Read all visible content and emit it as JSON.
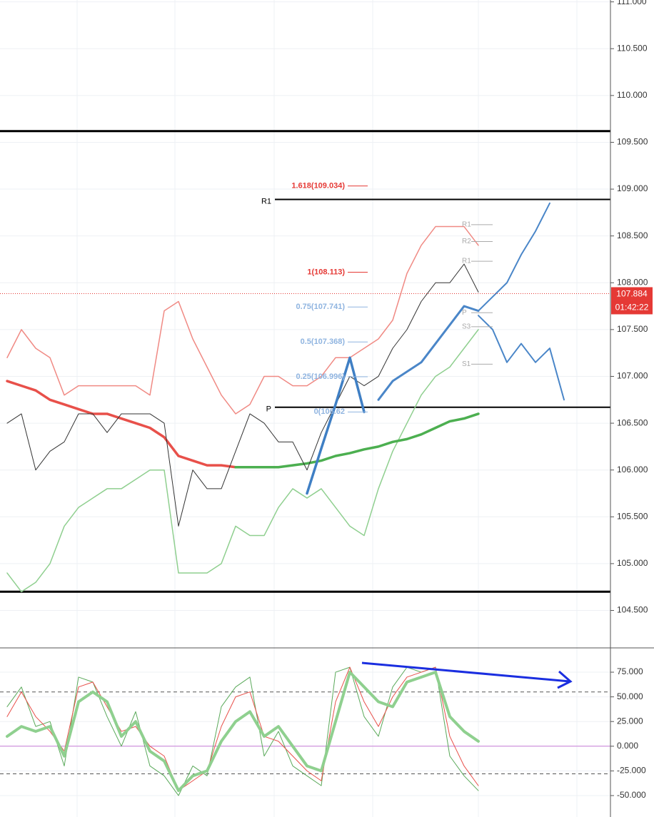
{
  "chart_data": [
    {
      "type": "line",
      "categories": [
        null,
        null,
        null,
        null,
        null,
        null,
        null,
        null,
        null,
        null,
        null,
        null,
        null,
        null,
        null,
        null,
        null,
        null,
        null,
        null,
        null,
        null,
        null,
        null,
        null,
        null,
        null,
        null,
        null,
        null,
        null,
        null,
        null,
        null,
        null,
        null,
        null,
        null,
        null,
        null
      ],
      "ylim": [
        104.1,
        111.02
      ],
      "yticks": [
        {
          "value": 104.5,
          "label": "104.500"
        },
        {
          "value": 105,
          "label": "105.000"
        },
        {
          "value": 105.5,
          "label": "105.500"
        },
        {
          "value": 106,
          "label": "106.000"
        },
        {
          "value": 106.5,
          "label": "106.500"
        },
        {
          "value": 107,
          "label": "107.000"
        },
        {
          "value": 107.5,
          "label": "107.500"
        },
        {
          "value": 108,
          "label": "108.000"
        },
        {
          "value": 108.5,
          "label": "108.500"
        },
        {
          "value": 109,
          "label": "109.000"
        },
        {
          "value": 109.5,
          "label": "109.500"
        },
        {
          "value": 110,
          "label": "110.000"
        },
        {
          "value": 110.5,
          "label": "110.500"
        },
        {
          "value": 111,
          "label": "111.000"
        }
      ],
      "grid": true,
      "series": [
        {
          "color": "#f08a84",
          "values": [
            107.2,
            107.5,
            107.3,
            107.2,
            106.8,
            106.9,
            106.9,
            106.9,
            106.9,
            106.9,
            106.8,
            107.7,
            107.8,
            107.4,
            107.1,
            106.8,
            106.6,
            106.7,
            107.0,
            107.0,
            106.9,
            106.9,
            107.0,
            107.2,
            107.2,
            107.3,
            107.4,
            107.6,
            108.1,
            108.4,
            108.6,
            108.6,
            108.6,
            108.4,
            null,
            null,
            null,
            null,
            null,
            null
          ]
        },
        {
          "color": "#8fcf8f",
          "values": [
            104.9,
            104.7,
            104.8,
            105.0,
            105.4,
            105.6,
            105.7,
            105.8,
            105.8,
            105.9,
            106.0,
            106.0,
            104.9,
            104.9,
            104.9,
            105.0,
            105.4,
            105.3,
            105.3,
            105.6,
            105.8,
            105.7,
            105.8,
            105.6,
            105.4,
            105.3,
            105.8,
            106.2,
            106.5,
            106.8,
            107.0,
            107.1,
            107.3,
            107.5,
            null,
            null,
            null,
            null,
            null,
            null
          ]
        },
        {
          "color": "#e8504a",
          "values": [
            106.95,
            106.9,
            106.85,
            106.75,
            106.7,
            106.65,
            106.6,
            106.6,
            106.55,
            106.5,
            106.45,
            106.35,
            106.15,
            106.1,
            106.05,
            106.05,
            106.03,
            null,
            null,
            null,
            null,
            null,
            null,
            null,
            null,
            null,
            null,
            null,
            null,
            null,
            null,
            null,
            null,
            null,
            null,
            null,
            null,
            null,
            null,
            null
          ]
        },
        {
          "color": "#4caf50",
          "values": [
            null,
            null,
            null,
            null,
            null,
            null,
            null,
            null,
            null,
            null,
            null,
            null,
            null,
            null,
            null,
            null,
            106.03,
            106.03,
            106.03,
            106.03,
            106.05,
            106.07,
            106.1,
            106.15,
            106.18,
            106.22,
            106.25,
            106.3,
            106.33,
            106.38,
            106.45,
            106.52,
            106.55,
            106.6,
            null,
            null,
            null,
            null,
            null,
            null
          ]
        },
        {
          "color": "#333333",
          "values": [
            106.5,
            106.6,
            106.0,
            106.2,
            106.3,
            106.6,
            106.6,
            106.4,
            106.6,
            106.6,
            106.6,
            106.5,
            105.4,
            106.0,
            105.8,
            105.8,
            106.2,
            106.6,
            106.5,
            106.3,
            106.3,
            106.0,
            106.4,
            106.7,
            107.0,
            106.9,
            107.0,
            107.3,
            107.5,
            107.8,
            108.0,
            108.0,
            108.2,
            107.9,
            null,
            null,
            null,
            null,
            null,
            null
          ]
        },
        {
          "color": "#4a86c8",
          "values": [
            null,
            null,
            null,
            null,
            null,
            null,
            null,
            null,
            null,
            null,
            null,
            null,
            null,
            null,
            null,
            null,
            null,
            null,
            null,
            null,
            null,
            null,
            null,
            null,
            null,
            null,
            106.75,
            106.95,
            107.05,
            107.15,
            107.35,
            107.55,
            107.75,
            107.7,
            null,
            null,
            null,
            null,
            null,
            null
          ]
        },
        {
          "color": "#4a86c8",
          "values": [
            null,
            null,
            null,
            null,
            null,
            null,
            null,
            null,
            null,
            null,
            null,
            null,
            null,
            null,
            null,
            null,
            null,
            null,
            null,
            null,
            null,
            null,
            null,
            null,
            null,
            null,
            null,
            null,
            null,
            null,
            null,
            null,
            null,
            107.7,
            107.85,
            108.0,
            108.3,
            108.55,
            108.85,
            null
          ]
        },
        {
          "color": "#4a86c8",
          "values": [
            null,
            null,
            null,
            null,
            null,
            null,
            null,
            null,
            null,
            null,
            null,
            null,
            null,
            null,
            null,
            null,
            null,
            null,
            null,
            null,
            null,
            null,
            null,
            null,
            null,
            null,
            null,
            null,
            null,
            null,
            null,
            null,
            null,
            107.65,
            107.5,
            107.15,
            107.35,
            107.15,
            107.3,
            106.75
          ]
        },
        {
          "color": "#3f7fc4",
          "values": [
            null,
            null,
            null,
            null,
            null,
            null,
            null,
            null,
            null,
            null,
            null,
            null,
            null,
            null,
            null,
            null,
            null,
            null,
            null,
            null,
            null,
            105.75,
            106.23,
            106.7,
            107.2,
            106.62,
            null,
            null,
            null,
            null,
            null,
            null,
            null,
            null,
            null,
            null,
            null,
            null,
            null,
            null
          ]
        }
      ],
      "hlines": [
        109.62,
        104.7
      ],
      "levels": [
        {
          "label": "R1",
          "value": 108.89
        },
        {
          "label": "P",
          "value": 106.67
        }
      ],
      "fib_labels": [
        {
          "label": "1.618(109.034)",
          "value": 109.034,
          "color": "#e53935"
        },
        {
          "label": "1(108.113)",
          "value": 108.113,
          "color": "#e53935"
        },
        {
          "label": "0.75(107.741)",
          "value": 107.741,
          "color": "#8fb4e0"
        },
        {
          "label": "0.5(107.368)",
          "value": 107.368,
          "color": "#8fb4e0"
        },
        {
          "label": "0.25(106.996)",
          "value": 106.996,
          "color": "#8fb4e0"
        },
        {
          "label": "0(106.62",
          "value": 106.62,
          "color": "#8fb4e0"
        }
      ],
      "pivot_labels": [
        {
          "label": "R1",
          "value": 108.62
        },
        {
          "label": "R2",
          "value": 108.44
        },
        {
          "label": "R1",
          "value": 108.23
        },
        {
          "label": "P",
          "value": 107.68
        },
        {
          "label": "S3",
          "value": 107.53
        },
        {
          "label": "S1",
          "value": 107.13
        }
      ],
      "last_price": {
        "value": 107.884,
        "label": "107.884"
      },
      "countdown": "01:42:22"
    },
    {
      "type": "line",
      "categories": [
        null,
        null,
        null,
        null,
        null,
        null,
        null,
        null,
        null,
        null,
        null,
        null,
        null,
        null,
        null,
        null,
        null,
        null,
        null,
        null,
        null,
        null,
        null,
        null,
        null,
        null,
        null,
        null,
        null,
        null,
        null,
        null,
        null,
        null,
        null,
        null,
        null,
        null,
        null,
        null
      ],
      "ylim": [
        -71.7,
        99.6
      ],
      "yticks": [
        {
          "value": 75,
          "label": "75.000"
        },
        {
          "value": 50,
          "label": "50.000"
        },
        {
          "value": 25,
          "label": "25.000"
        },
        {
          "value": 0,
          "label": "0.000"
        },
        {
          "value": -25,
          "label": "-25.000"
        },
        {
          "value": -50,
          "label": "-50.000"
        }
      ],
      "grid": true,
      "series": [
        {
          "color": "#5aa95a",
          "values": [
            40,
            60,
            20,
            25,
            -20,
            70,
            65,
            30,
            0,
            35,
            -20,
            -30,
            -50,
            -20,
            -30,
            40,
            60,
            70,
            -10,
            15,
            -20,
            -30,
            -40,
            75,
            80,
            30,
            10,
            60,
            80,
            75,
            80,
            -10,
            -30,
            -45,
            null,
            null,
            null,
            null,
            null,
            null
          ]
        },
        {
          "color": "#e8504a",
          "values": [
            30,
            55,
            30,
            15,
            -5,
            60,
            65,
            40,
            15,
            20,
            0,
            -10,
            -45,
            -35,
            -25,
            20,
            50,
            55,
            10,
            5,
            -10,
            -25,
            -35,
            45,
            80,
            45,
            20,
            50,
            70,
            75,
            80,
            10,
            -20,
            -40,
            null,
            null,
            null,
            null,
            null,
            null
          ]
        },
        {
          "color": "#8fd08f",
          "values": [
            10,
            20,
            15,
            20,
            -10,
            45,
            55,
            45,
            10,
            25,
            -5,
            -15,
            -45,
            -30,
            -25,
            5,
            25,
            35,
            10,
            20,
            0,
            -20,
            -25,
            25,
            75,
            60,
            45,
            40,
            65,
            70,
            75,
            30,
            15,
            5,
            null,
            null,
            null,
            null,
            null,
            null
          ]
        }
      ],
      "dashed_lines": [
        55,
        -28
      ],
      "zero_line": 0
    }
  ]
}
